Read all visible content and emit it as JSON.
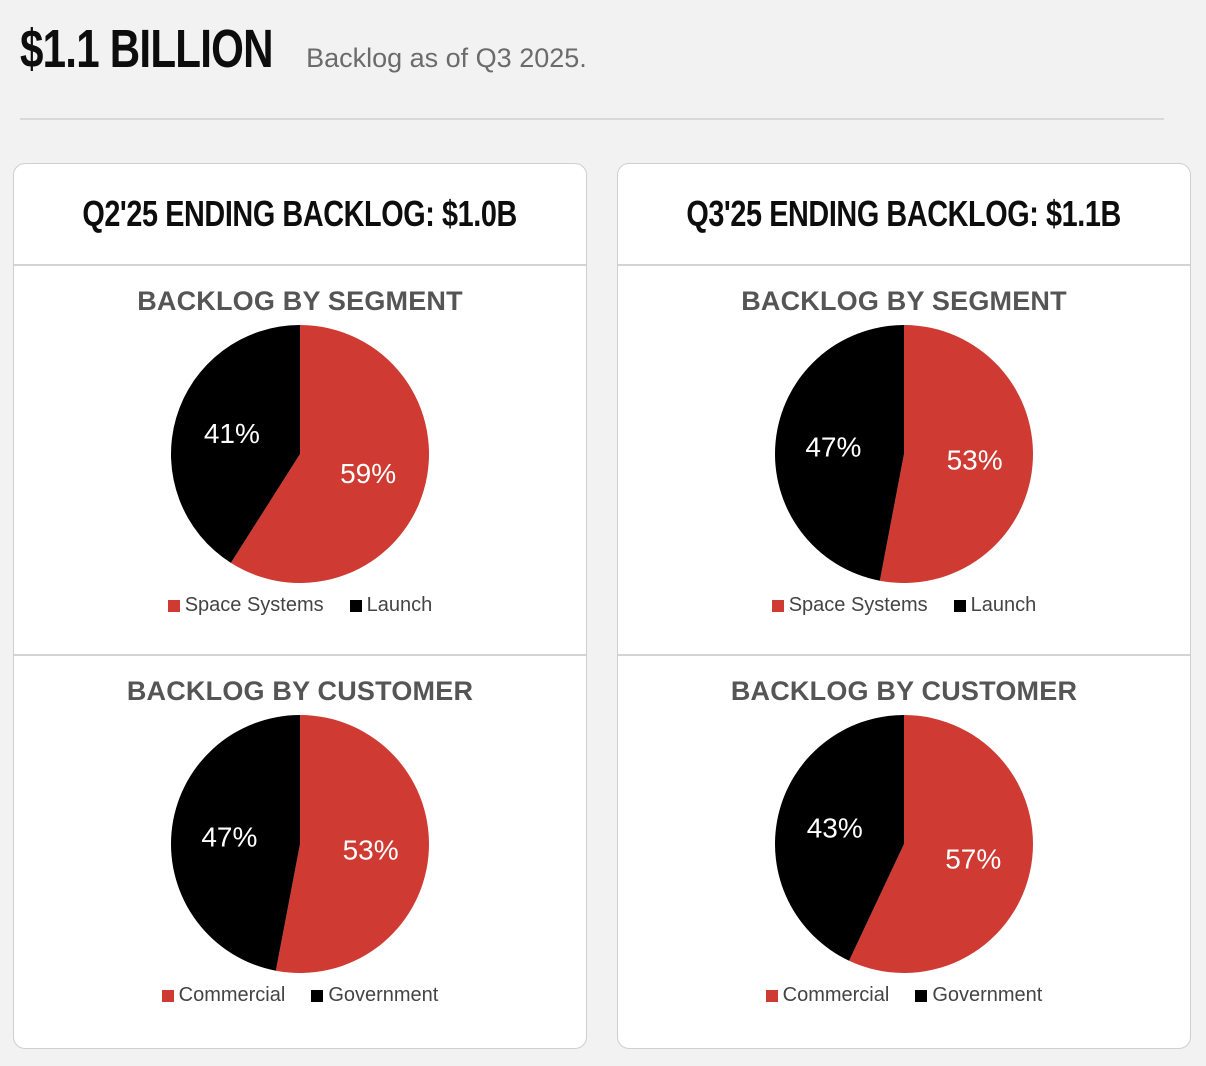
{
  "header": {
    "headline": "$1.1 BILLION",
    "subhead": "Backlog as of Q3 2025."
  },
  "colors": {
    "red": "#cf3a32",
    "black": "#000000"
  },
  "cards": [
    {
      "title": "Q2'25 ENDING BACKLOG: $1.0B",
      "charts": [
        {
          "title": "BACKLOG BY SEGMENT",
          "legend": [
            "Space Systems",
            "Launch"
          ]
        },
        {
          "title": "BACKLOG BY CUSTOMER",
          "legend": [
            "Commercial",
            "Government"
          ]
        }
      ]
    },
    {
      "title": "Q3'25 ENDING BACKLOG: $1.1B",
      "charts": [
        {
          "title": "BACKLOG BY SEGMENT",
          "legend": [
            "Space Systems",
            "Launch"
          ]
        },
        {
          "title": "BACKLOG BY CUSTOMER",
          "legend": [
            "Commercial",
            "Government"
          ]
        }
      ]
    }
  ],
  "chart_data": [
    {
      "type": "pie",
      "title": "BACKLOG BY SEGMENT",
      "categories": [
        "Space Systems",
        "Launch"
      ],
      "values": [
        59,
        41
      ],
      "labels": [
        "59%",
        "41%"
      ],
      "colors": [
        "#cf3a32",
        "#000000"
      ],
      "legend": "bottom"
    },
    {
      "type": "pie",
      "title": "BACKLOG BY CUSTOMER",
      "categories": [
        "Commercial",
        "Government"
      ],
      "values": [
        53,
        47
      ],
      "labels": [
        "53%",
        "47%"
      ],
      "colors": [
        "#cf3a32",
        "#000000"
      ],
      "legend": "bottom"
    },
    {
      "type": "pie",
      "title": "BACKLOG BY SEGMENT",
      "categories": [
        "Space Systems",
        "Launch"
      ],
      "values": [
        53,
        47
      ],
      "labels": [
        "53%",
        "47%"
      ],
      "colors": [
        "#cf3a32",
        "#000000"
      ],
      "legend": "bottom"
    },
    {
      "type": "pie",
      "title": "BACKLOG BY CUSTOMER",
      "categories": [
        "Commercial",
        "Government"
      ],
      "values": [
        57,
        43
      ],
      "labels": [
        "57%",
        "43%"
      ],
      "colors": [
        "#cf3a32",
        "#000000"
      ],
      "legend": "bottom"
    }
  ]
}
